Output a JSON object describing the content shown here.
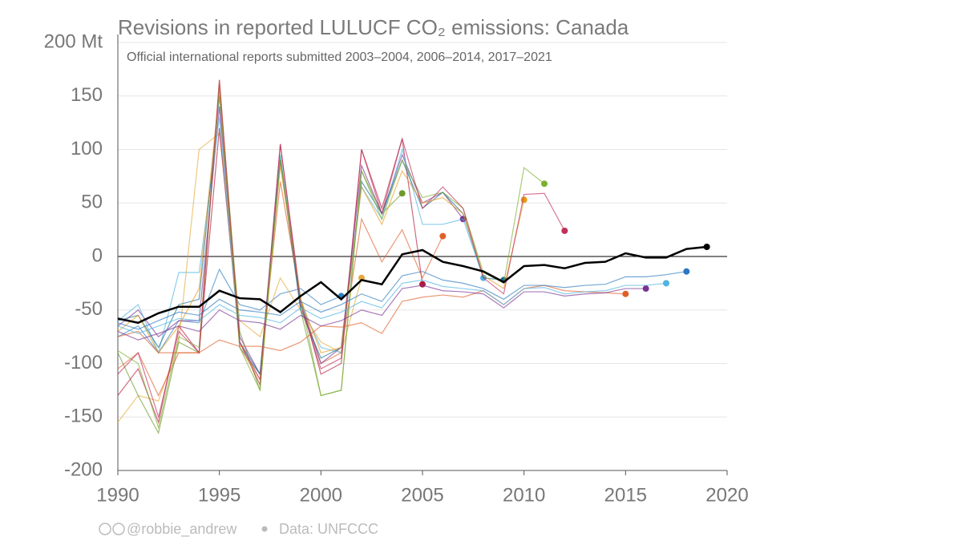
{
  "chart_data": {
    "type": "line",
    "title": "Revisions in reported LULUCF CO₂ emissions: Canada",
    "subtitle": "Official international reports submitted 2003–2004, 2006–2014, 2017–2021",
    "x": [
      1990,
      1991,
      1992,
      1993,
      1994,
      1995,
      1996,
      1997,
      1998,
      1999,
      2000,
      2001,
      2002,
      2003,
      2004,
      2005,
      2006,
      2007,
      2008,
      2009,
      2010,
      2011,
      2012,
      2013,
      2014,
      2015,
      2016,
      2017,
      2018,
      2019
    ],
    "xlim": [
      1990,
      2020
    ],
    "xticks": [
      1990,
      1995,
      2000,
      2005,
      2010,
      2015,
      2020
    ],
    "ylim": [
      -200,
      200
    ],
    "yticks": [
      -200,
      -150,
      -100,
      -50,
      0,
      50,
      100,
      150,
      {
        "value": 200,
        "label": "200 Mt"
      }
    ],
    "grid": true,
    "series": [
      {
        "color": "#2f7fc1",
        "values": [
          -75,
          -65,
          -90,
          -60,
          -62,
          -12,
          -45,
          -50,
          -35,
          -30,
          -45,
          -37,
          null,
          null,
          null,
          null,
          null,
          null,
          null,
          null,
          null,
          null,
          null,
          null,
          null,
          null,
          null,
          null,
          null,
          null
        ]
      },
      {
        "color": "#e8a93a",
        "values": [
          -155,
          -130,
          -135,
          -80,
          100,
          115,
          -60,
          -75,
          -20,
          -50,
          -80,
          -90,
          -20,
          null,
          null,
          null,
          null,
          null,
          null,
          null,
          null,
          null,
          null,
          null,
          null,
          null,
          null,
          null,
          null,
          null
        ]
      },
      {
        "color": "#6f9a2a",
        "values": [
          -90,
          -130,
          -165,
          -80,
          -90,
          160,
          -70,
          -125,
          95,
          -50,
          -130,
          -125,
          80,
          40,
          59,
          null,
          null,
          null,
          null,
          null,
          null,
          null,
          null,
          null,
          null,
          null,
          null,
          null,
          null,
          null
        ]
      },
      {
        "color": "#b0183c",
        "values": [
          -130,
          -105,
          -155,
          -65,
          -90,
          120,
          -80,
          -120,
          105,
          -40,
          -110,
          -100,
          100,
          45,
          110,
          -26,
          null,
          null,
          null,
          null,
          null,
          null,
          null,
          null,
          null,
          null,
          null,
          null,
          null,
          null
        ]
      },
      {
        "color": "#e0602a",
        "values": [
          -105,
          -90,
          -130,
          -90,
          -90,
          165,
          -85,
          -110,
          70,
          -40,
          -100,
          -90,
          35,
          -5,
          25,
          -20,
          19,
          null,
          null,
          null,
          null,
          null,
          null,
          null,
          null,
          null,
          null,
          null,
          null,
          null
        ]
      },
      {
        "color": "#7b3294",
        "values": [
          -65,
          -50,
          -75,
          -60,
          -60,
          140,
          -75,
          -110,
          90,
          -45,
          -100,
          -85,
          85,
          40,
          95,
          50,
          60,
          35,
          null,
          null,
          null,
          null,
          null,
          null,
          null,
          null,
          null,
          null,
          null,
          null
        ]
      },
      {
        "color": "#4fb3e0",
        "values": [
          -60,
          -45,
          -90,
          -15,
          -15,
          130,
          -85,
          -110,
          95,
          -45,
          -85,
          -90,
          65,
          35,
          100,
          30,
          30,
          35,
          -20,
          null,
          null,
          null,
          null,
          null,
          null,
          null,
          null,
          null,
          null,
          null
        ]
      },
      {
        "color": "#1a6e8e",
        "values": [
          -60,
          -55,
          -85,
          -45,
          -40,
          150,
          -80,
          -110,
          90,
          -50,
          -95,
          -85,
          70,
          40,
          90,
          45,
          60,
          40,
          -20,
          -22,
          null,
          null,
          null,
          null,
          null,
          null,
          null,
          null,
          null,
          null
        ]
      },
      {
        "color": "#e89a1a",
        "values": [
          -70,
          -55,
          -90,
          -65,
          -30,
          155,
          -85,
          -115,
          85,
          -40,
          -90,
          -85,
          65,
          30,
          80,
          50,
          55,
          40,
          -18,
          -30,
          53,
          null,
          null,
          null,
          null,
          null,
          null,
          null,
          null,
          null
        ]
      },
      {
        "color": "#7ab030",
        "values": [
          -88,
          -100,
          -160,
          -75,
          -85,
          160,
          -85,
          -125,
          90,
          -40,
          -130,
          -125,
          80,
          35,
          90,
          55,
          60,
          45,
          -15,
          -25,
          83,
          68,
          null,
          null,
          null,
          null,
          null,
          null,
          null,
          null
        ]
      },
      {
        "color": "#c0305a",
        "values": [
          -110,
          -90,
          -150,
          -70,
          -90,
          165,
          -80,
          -115,
          105,
          -45,
          -105,
          -95,
          100,
          40,
          110,
          45,
          65,
          45,
          -20,
          -35,
          58,
          59,
          24,
          null,
          null,
          null,
          null,
          null,
          null,
          null
        ]
      },
      {
        "color": "#e0602a",
        "values": [
          -75,
          -70,
          -90,
          -90,
          -90,
          -78,
          -84,
          -84,
          -88,
          -80,
          -65,
          -66,
          -62,
          -72,
          -42,
          -38,
          -36,
          -38,
          -32,
          -45,
          -30,
          -27,
          -32,
          -33,
          -34,
          -35,
          null,
          null,
          null,
          null
        ]
      },
      {
        "color": "#7b3294",
        "values": [
          -70,
          -78,
          -72,
          -65,
          -70,
          -50,
          -60,
          -62,
          -68,
          -55,
          -65,
          -60,
          -50,
          -55,
          -30,
          -27,
          -32,
          -33,
          -35,
          -48,
          -33,
          -33,
          -37,
          -35,
          -34,
          -30,
          -30,
          null,
          null,
          null
        ]
      },
      {
        "color": "#4fb3e0",
        "values": [
          -65,
          -72,
          -65,
          -58,
          -60,
          -45,
          -55,
          -57,
          -62,
          -48,
          -58,
          -52,
          -42,
          -48,
          -25,
          -22,
          -28,
          -30,
          -32,
          -45,
          -30,
          -29,
          -35,
          -33,
          -32,
          -27,
          -27,
          -25,
          null,
          null
        ]
      },
      {
        "color": "#2a78c0",
        "values": [
          -62,
          -68,
          -60,
          -52,
          -55,
          -40,
          -50,
          -52,
          -55,
          -42,
          -52,
          -45,
          -35,
          -42,
          -18,
          -14,
          -22,
          -25,
          -30,
          -40,
          -27,
          -27,
          -29,
          -27,
          -26,
          -19,
          -19,
          -17,
          -14,
          null
        ]
      },
      {
        "color": "#000000",
        "values": [
          -58,
          -62,
          -53,
          -47,
          -47,
          -32,
          -39,
          -40,
          -52,
          -37,
          -24,
          -40,
          -22,
          -26,
          2,
          6,
          -5,
          -9,
          -14,
          -24,
          -9,
          -8,
          -11,
          -6,
          -5,
          3,
          -1,
          -1,
          7,
          9
        ]
      }
    ]
  },
  "footer": {
    "credit": "@robbie_andrew",
    "source": "Data: UNFCCC"
  }
}
